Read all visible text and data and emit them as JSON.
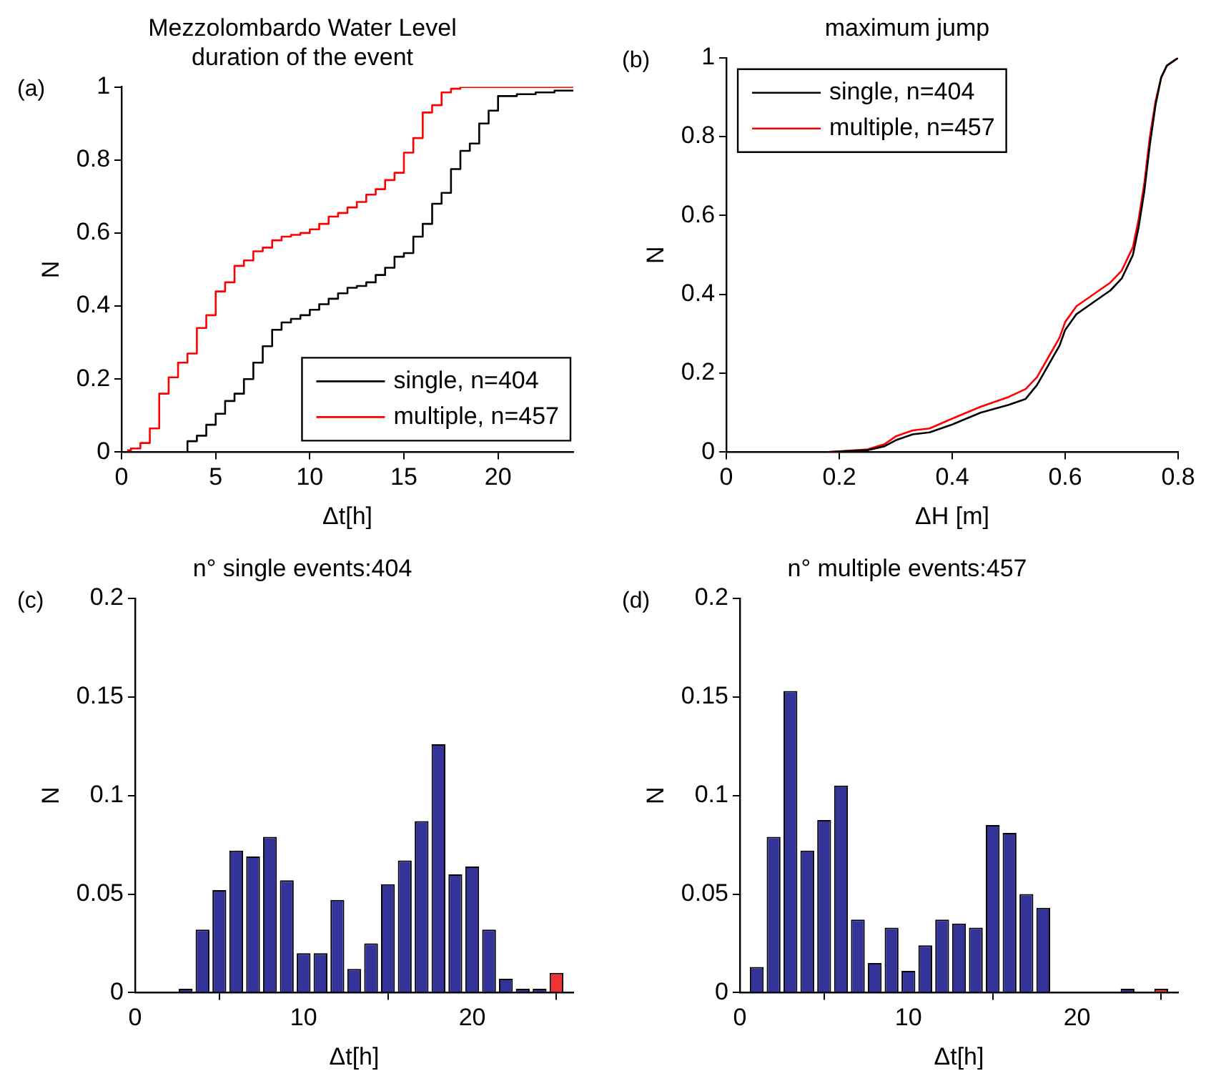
{
  "chart_data": [
    {
      "type": "step",
      "title": "Mezzolombardo Water Level",
      "subtitle": "duration of the event",
      "xlabel": "Δt[h]",
      "ylabel": "N",
      "annotations": [
        "(a)"
      ],
      "xlim": [
        0,
        24
      ],
      "xticks": [
        0,
        5,
        10,
        15,
        20
      ],
      "ylim": [
        0,
        1
      ],
      "yticks": [
        0,
        0.2,
        0.4,
        0.6,
        0.8,
        1
      ],
      "grid": false,
      "legend": "bottom right",
      "marker": "none",
      "line_style": "solid",
      "series": [
        {
          "name": "single, n=404",
          "color": "#000000",
          "x": [
            3,
            3.5,
            4,
            4.5,
            5,
            5.5,
            6,
            6.5,
            7,
            7.5,
            8,
            8.5,
            9,
            9.5,
            10,
            10.5,
            11,
            11.5,
            12,
            12.5,
            13,
            13.5,
            14,
            14.5,
            15,
            15.5,
            16,
            16.5,
            17,
            17.5,
            18,
            18.5,
            19,
            19.5,
            20,
            21,
            22,
            23,
            24
          ],
          "values": [
            0,
            0.03,
            0.045,
            0.075,
            0.105,
            0.14,
            0.16,
            0.2,
            0.245,
            0.29,
            0.335,
            0.355,
            0.365,
            0.375,
            0.39,
            0.405,
            0.42,
            0.435,
            0.45,
            0.455,
            0.465,
            0.485,
            0.505,
            0.535,
            0.545,
            0.59,
            0.625,
            0.68,
            0.71,
            0.775,
            0.825,
            0.845,
            0.9,
            0.935,
            0.975,
            0.98,
            0.985,
            0.99,
            0.99
          ]
        },
        {
          "name": "multiple, n=457",
          "color": "#ff0000",
          "x": [
            0.3,
            0.5,
            1,
            1.5,
            2,
            2.5,
            3,
            3.5,
            4,
            4.5,
            5,
            5.5,
            6,
            6.5,
            7,
            7.5,
            8,
            8.5,
            9,
            9.5,
            10,
            10.5,
            11,
            11.5,
            12,
            12.5,
            13,
            13.5,
            14,
            14.5,
            15,
            15.5,
            16,
            16.5,
            17,
            17.5,
            18,
            24
          ],
          "values": [
            0.005,
            0.01,
            0.025,
            0.065,
            0.16,
            0.205,
            0.245,
            0.27,
            0.34,
            0.375,
            0.44,
            0.465,
            0.51,
            0.525,
            0.55,
            0.56,
            0.58,
            0.59,
            0.595,
            0.6,
            0.61,
            0.625,
            0.645,
            0.655,
            0.67,
            0.685,
            0.705,
            0.72,
            0.745,
            0.765,
            0.82,
            0.86,
            0.93,
            0.95,
            0.985,
            0.995,
            1,
            1
          ]
        }
      ]
    },
    {
      "type": "line",
      "title": "maximum jump",
      "xlabel": "ΔH [m]",
      "ylabel": "N",
      "annotations": [
        "(b)"
      ],
      "xlim": [
        0,
        0.8
      ],
      "xticks": [
        0,
        0.2,
        0.4,
        0.6,
        0.8
      ],
      "ylim": [
        0,
        1
      ],
      "yticks": [
        0,
        0.2,
        0.4,
        0.6,
        0.8,
        1
      ],
      "grid": false,
      "legend": "top left",
      "marker": "none",
      "line_style": "solid",
      "series": [
        {
          "name": "single, n=404",
          "color": "#000000",
          "x": [
            0.18,
            0.25,
            0.28,
            0.3,
            0.33,
            0.36,
            0.4,
            0.45,
            0.5,
            0.53,
            0.55,
            0.57,
            0.59,
            0.6,
            0.62,
            0.65,
            0.68,
            0.7,
            0.72,
            0.73,
            0.74,
            0.75,
            0.76,
            0.77,
            0.78,
            0.8
          ],
          "values": [
            0,
            0.005,
            0.015,
            0.03,
            0.045,
            0.05,
            0.07,
            0.1,
            0.12,
            0.135,
            0.17,
            0.22,
            0.27,
            0.31,
            0.35,
            0.38,
            0.41,
            0.44,
            0.5,
            0.57,
            0.66,
            0.78,
            0.88,
            0.95,
            0.98,
            1
          ]
        },
        {
          "name": "multiple, n=457",
          "color": "#ff0000",
          "x": [
            0.18,
            0.25,
            0.28,
            0.3,
            0.33,
            0.36,
            0.4,
            0.45,
            0.5,
            0.53,
            0.55,
            0.57,
            0.59,
            0.6,
            0.62,
            0.65,
            0.68,
            0.7,
            0.72,
            0.73,
            0.74,
            0.75,
            0.76,
            0.77,
            0.78,
            0.8
          ],
          "values": [
            0,
            0.007,
            0.02,
            0.04,
            0.055,
            0.06,
            0.085,
            0.115,
            0.14,
            0.16,
            0.19,
            0.24,
            0.29,
            0.33,
            0.37,
            0.4,
            0.43,
            0.46,
            0.52,
            0.59,
            0.68,
            0.8,
            0.89,
            0.95,
            0.98,
            1
          ]
        }
      ]
    },
    {
      "type": "histogram",
      "title": "n° single events:404",
      "xlabel": "Δt[h]",
      "ylabel": "N",
      "annotations": [
        "(c)"
      ],
      "xlim": [
        0,
        26
      ],
      "xticks": [
        0,
        10,
        20
      ],
      "ylim": [
        0,
        0.2
      ],
      "yticks": [
        0,
        0.05,
        0.1,
        0.15,
        0.2
      ],
      "grid": false,
      "bins": [
        0.5,
        1.5,
        2.5,
        3.5,
        4.5,
        5.5,
        6.5,
        7.5,
        8.5,
        9.5,
        10.5,
        11.5,
        12.5,
        13.5,
        14.5,
        15.5,
        16.5,
        17.5,
        18.5,
        19.5,
        20.5,
        21.5,
        22.5,
        23.5,
        24.5,
        25.5
      ],
      "values": [
        0,
        0,
        0.002,
        0.032,
        0.052,
        0.072,
        0.069,
        0.079,
        0.057,
        0.02,
        0.02,
        0.047,
        0.012,
        0.025,
        0.055,
        0.067,
        0.087,
        0.126,
        0.06,
        0.064,
        0.032,
        0.007,
        0.002,
        0.002,
        0.01
      ],
      "colors": [
        "#333399",
        "#333399",
        "#333399",
        "#333399",
        "#333399",
        "#333399",
        "#333399",
        "#333399",
        "#333399",
        "#333399",
        "#333399",
        "#333399",
        "#333399",
        "#333399",
        "#333399",
        "#333399",
        "#333399",
        "#333399",
        "#333399",
        "#333399",
        "#333399",
        "#333399",
        "#333399",
        "#333399",
        "#ee3333"
      ]
    },
    {
      "type": "histogram",
      "title": "n° multiple events:457",
      "xlabel": "Δt[h]",
      "ylabel": "N",
      "annotations": [
        "(d)"
      ],
      "xlim": [
        0,
        26
      ],
      "xticks": [
        0,
        10,
        20
      ],
      "ylim": [
        0,
        0.2
      ],
      "yticks": [
        0,
        0.05,
        0.1,
        0.15,
        0.2
      ],
      "grid": false,
      "bins": [
        0.5,
        1.5,
        2.5,
        3.5,
        4.5,
        5.5,
        6.5,
        7.5,
        8.5,
        9.5,
        10.5,
        11.5,
        12.5,
        13.5,
        14.5,
        15.5,
        16.5,
        17.5,
        18.5,
        19.5,
        20.5,
        21.5,
        22.5,
        23.5,
        24.5,
        25.5
      ],
      "values": [
        0.013,
        0.079,
        0.153,
        0.072,
        0.0875,
        0.105,
        0.037,
        0.015,
        0.033,
        0.011,
        0.024,
        0.037,
        0.035,
        0.033,
        0.085,
        0.081,
        0.05,
        0.043,
        0,
        0,
        0,
        0,
        0.002,
        0,
        0.002
      ],
      "colors": [
        "#333399",
        "#333399",
        "#333399",
        "#333399",
        "#333399",
        "#333399",
        "#333399",
        "#333399",
        "#333399",
        "#333399",
        "#333399",
        "#333399",
        "#333399",
        "#333399",
        "#333399",
        "#333399",
        "#333399",
        "#333399",
        "#333399",
        "#333399",
        "#333399",
        "#333399",
        "#333399",
        "#333399",
        "#ee3333"
      ]
    }
  ]
}
